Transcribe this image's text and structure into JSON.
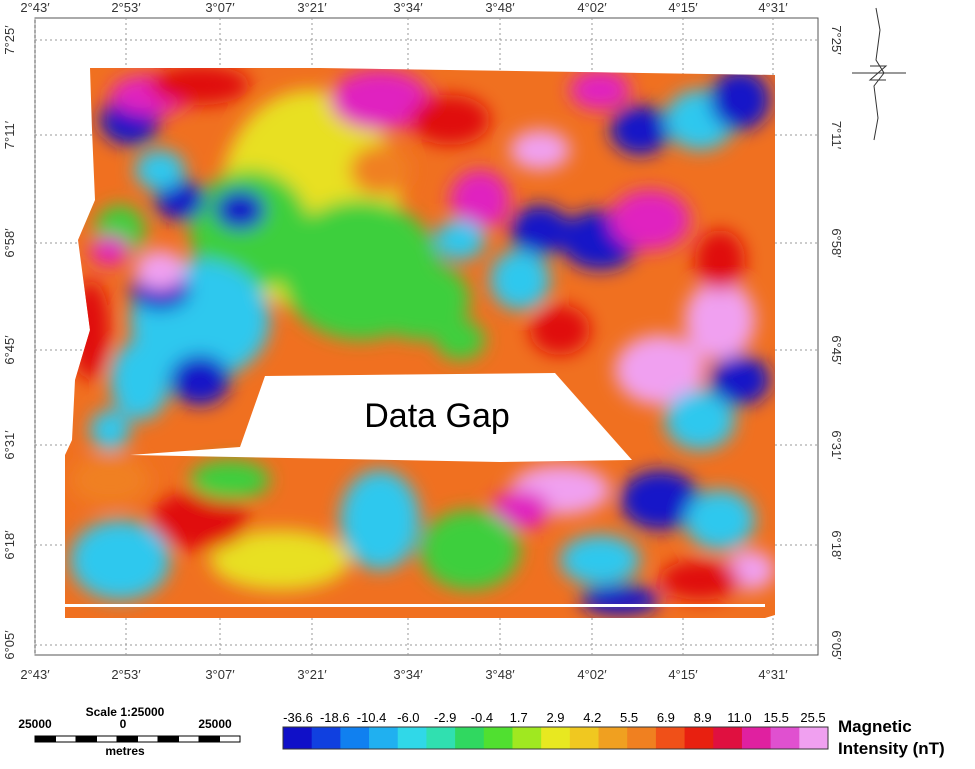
{
  "map": {
    "lon_labels": [
      "2°43′",
      "2°53′",
      "3°07′",
      "3°21′",
      "3°34′",
      "3°48′",
      "4°02′",
      "4°15′",
      "4°31′"
    ],
    "lat_labels": [
      "7°25′",
      "7°11′",
      "6°58′",
      "6°45′",
      "6°31′",
      "6°18′",
      "6°05′"
    ],
    "annotation": "Data Gap"
  },
  "scale_bar": {
    "title": "Scale 1:25000",
    "labels": [
      "25000",
      "0",
      "25000"
    ],
    "unit": "metres"
  },
  "legend": {
    "values": [
      "-36.6",
      "-18.6",
      "-10.4",
      "-6.0",
      "-2.9",
      "-0.4",
      "1.7",
      "2.9",
      "4.2",
      "5.5",
      "6.9",
      "8.9",
      "11.0",
      "15.5",
      "25.5"
    ],
    "title": [
      "Magnetic",
      "Intensity (nT)"
    ]
  }
}
